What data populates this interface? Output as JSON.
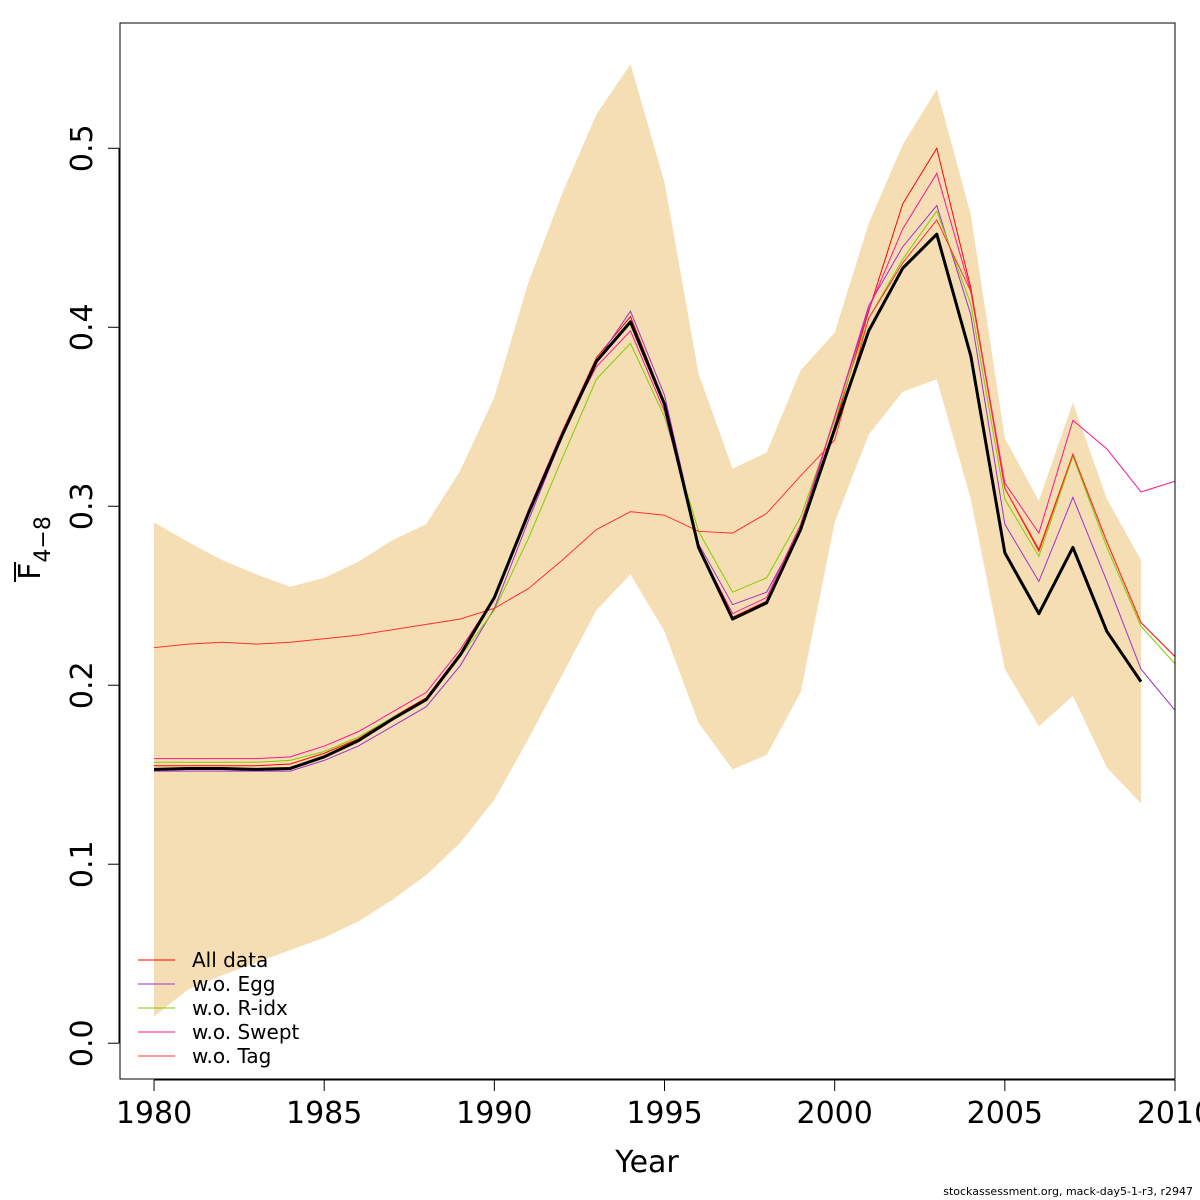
{
  "chart_data": {
    "type": "line",
    "xlabel": "Year",
    "ylabel_main": "F",
    "ylabel_subscript": "4−8",
    "xlim": [
      1979,
      2010
    ],
    "ylim": [
      -0.02,
      0.57
    ],
    "xticks": [
      1980,
      1985,
      1990,
      1995,
      2000,
      2005,
      2010
    ],
    "xtick_labels": [
      "1980",
      "1985",
      "1990",
      "1995",
      "2000",
      "2005",
      "2010"
    ],
    "yticks": [
      0.0,
      0.1,
      0.2,
      0.3,
      0.4,
      0.5
    ],
    "ytick_labels": [
      "0.0",
      "0.1",
      "0.2",
      "0.3",
      "0.4",
      "0.5"
    ],
    "grid": false,
    "legend_position": "bottom-left",
    "band_color": "#F5DEB3",
    "main_color": "#000000",
    "confidence_band": {
      "x": [
        1980,
        1981,
        1982,
        1983,
        1984,
        1985,
        1986,
        1987,
        1988,
        1989,
        1990,
        1991,
        1992,
        1993,
        1994,
        1995,
        1996,
        1997,
        1998,
        1999,
        2000,
        2001,
        2002,
        2003,
        2004,
        2005,
        2006,
        2007,
        2008,
        2009
      ],
      "lower": [
        0.015,
        0.03,
        0.038,
        0.045,
        0.052,
        0.059,
        0.068,
        0.08,
        0.094,
        0.112,
        0.136,
        0.17,
        0.206,
        0.242,
        0.262,
        0.23,
        0.179,
        0.153,
        0.161,
        0.196,
        0.291,
        0.34,
        0.364,
        0.371,
        0.304,
        0.209,
        0.177,
        0.194,
        0.154,
        0.134
      ],
      "upper": [
        0.291,
        0.28,
        0.27,
        0.262,
        0.255,
        0.26,
        0.269,
        0.281,
        0.29,
        0.32,
        0.361,
        0.425,
        0.475,
        0.519,
        0.547,
        0.481,
        0.374,
        0.321,
        0.33,
        0.376,
        0.397,
        0.458,
        0.502,
        0.533,
        0.463,
        0.338,
        0.303,
        0.358,
        0.304,
        0.27
      ]
    },
    "main_series": {
      "x": [
        1980,
        1981,
        1982,
        1983,
        1984,
        1985,
        1986,
        1987,
        1988,
        1989,
        1990,
        1991,
        1992,
        1993,
        1994,
        1995,
        1996,
        1997,
        1998,
        1999,
        2000,
        2001,
        2002,
        2003,
        2004,
        2005,
        2006,
        2007,
        2008,
        2009
      ],
      "values": [
        0.153,
        0.1535,
        0.1535,
        0.153,
        0.1535,
        0.16,
        0.169,
        0.181,
        0.192,
        0.217,
        0.249,
        0.296,
        0.34,
        0.381,
        0.403,
        0.357,
        0.277,
        0.237,
        0.246,
        0.287,
        0.343,
        0.398,
        0.433,
        0.452,
        0.384,
        0.274,
        0.24,
        0.277,
        0.23,
        0.202
      ]
    },
    "series": [
      {
        "name": "All data",
        "color": "#FF0000",
        "x": [
          1980,
          1981,
          1982,
          1983,
          1984,
          1985,
          1986,
          1987,
          1988,
          1989,
          1990,
          1991,
          1992,
          1993,
          1994,
          1995,
          1996,
          1997,
          1998,
          1999,
          2000,
          2001,
          2002,
          2003,
          2004,
          2005,
          2006,
          2007,
          2008,
          2009,
          2010
        ],
        "values": [
          0.155,
          0.155,
          0.155,
          0.155,
          0.156,
          0.162,
          0.17,
          0.182,
          0.193,
          0.218,
          0.248,
          0.297,
          0.342,
          0.383,
          0.406,
          0.358,
          0.278,
          0.238,
          0.247,
          0.288,
          0.345,
          0.409,
          0.469,
          0.5,
          0.422,
          0.31,
          0.275,
          0.329,
          0.28,
          0.235,
          0.216
        ]
      },
      {
        "name": "w.o. Egg",
        "color": "#9A32CD",
        "x": [
          1980,
          1981,
          1982,
          1983,
          1984,
          1985,
          1986,
          1987,
          1988,
          1989,
          1990,
          1991,
          1992,
          1993,
          1994,
          1995,
          1996,
          1997,
          1998,
          1999,
          2000,
          2001,
          2002,
          2003,
          2004,
          2005,
          2006,
          2007,
          2008,
          2009,
          2010
        ],
        "values": [
          0.152,
          0.152,
          0.152,
          0.152,
          0.152,
          0.158,
          0.166,
          0.177,
          0.188,
          0.211,
          0.243,
          0.292,
          0.339,
          0.381,
          0.409,
          0.362,
          0.279,
          0.245,
          0.252,
          0.287,
          0.35,
          0.412,
          0.445,
          0.468,
          0.407,
          0.29,
          0.258,
          0.305,
          0.258,
          0.209,
          0.186
        ]
      },
      {
        "name": "w.o. R-idx",
        "color": "#7FCD00",
        "x": [
          1980,
          1981,
          1982,
          1983,
          1984,
          1985,
          1986,
          1987,
          1988,
          1989,
          1990,
          1991,
          1992,
          1993,
          1994,
          1995,
          1996,
          1997,
          1998,
          1999,
          2000,
          2001,
          2002,
          2003,
          2004,
          2005,
          2006,
          2007,
          2008,
          2009,
          2010
        ],
        "values": [
          0.157,
          0.157,
          0.157,
          0.157,
          0.158,
          0.163,
          0.171,
          0.182,
          0.192,
          0.216,
          0.242,
          0.282,
          0.327,
          0.371,
          0.391,
          0.35,
          0.286,
          0.252,
          0.26,
          0.294,
          0.348,
          0.405,
          0.438,
          0.465,
          0.413,
          0.304,
          0.272,
          0.328,
          0.277,
          0.233,
          0.212
        ]
      },
      {
        "name": "w.o. Swept",
        "color": "#FF1493",
        "x": [
          1980,
          1981,
          1982,
          1983,
          1984,
          1985,
          1986,
          1987,
          1988,
          1989,
          1990,
          1991,
          1992,
          1993,
          1994,
          1995,
          1996,
          1997,
          1998,
          1999,
          2000,
          2001,
          2002,
          2003,
          2004,
          2005,
          2006,
          2007,
          2008,
          2009,
          2010
        ],
        "values": [
          0.159,
          0.159,
          0.159,
          0.159,
          0.16,
          0.166,
          0.174,
          0.185,
          0.196,
          0.22,
          0.249,
          0.298,
          0.342,
          0.378,
          0.398,
          0.353,
          0.277,
          0.24,
          0.249,
          0.29,
          0.35,
          0.41,
          0.455,
          0.486,
          0.42,
          0.313,
          0.285,
          0.348,
          0.332,
          0.308,
          0.314
        ]
      },
      {
        "name": "w.o. Tag",
        "color": "#FF3030",
        "x": [
          1980,
          1981,
          1982,
          1983,
          1984,
          1985,
          1986,
          1987,
          1988,
          1989,
          1990,
          1991,
          1992,
          1993,
          1994,
          1995,
          1996,
          1997,
          1998,
          1999,
          2000,
          2001,
          2002,
          2003,
          2004,
          2005,
          2006,
          2007,
          2008,
          2009
        ],
        "values": [
          0.221,
          0.223,
          0.224,
          0.223,
          0.224,
          0.226,
          0.228,
          0.231,
          0.234,
          0.237,
          0.243,
          0.254,
          0.27,
          0.287,
          0.297,
          0.295,
          0.286,
          0.285,
          0.296,
          0.317,
          0.337,
          0.405,
          0.436,
          0.46,
          0.42,
          0.31,
          0.276,
          0.329,
          0.28,
          0.235
        ]
      }
    ]
  },
  "footer": "stockassessment.org, mack-day5-1-r3, r2947"
}
